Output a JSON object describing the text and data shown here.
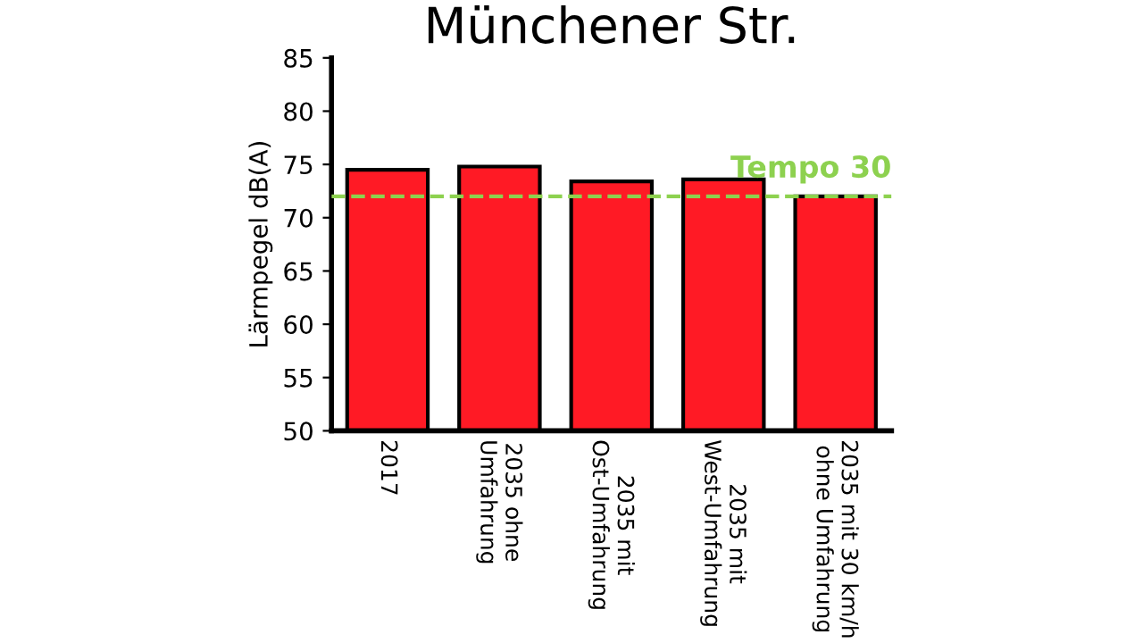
{
  "chart_data": {
    "type": "bar",
    "title": "Münchener Str.",
    "ylabel": "Lärmpegel dB(A)",
    "categories": [
      "2017",
      "2035 ohne\nUmfahrung",
      "2035 mit\nOst-Umfahrung",
      "2035 mit\nWest-Umfahrung",
      "2035 mit 30 km/h\nohne Umfahrung"
    ],
    "values": [
      74.5,
      74.8,
      73.4,
      73.6,
      72.0
    ],
    "color": "#ff1a25",
    "ylim": [
      50,
      85
    ],
    "yticks": [
      50,
      55,
      60,
      65,
      70,
      75,
      80,
      85
    ],
    "grid": false,
    "ref_lines": [
      {
        "axis": "y",
        "value": 72.0,
        "label": "Tempo 30",
        "color": "#8dd14f",
        "line_style": "dashed"
      }
    ]
  }
}
